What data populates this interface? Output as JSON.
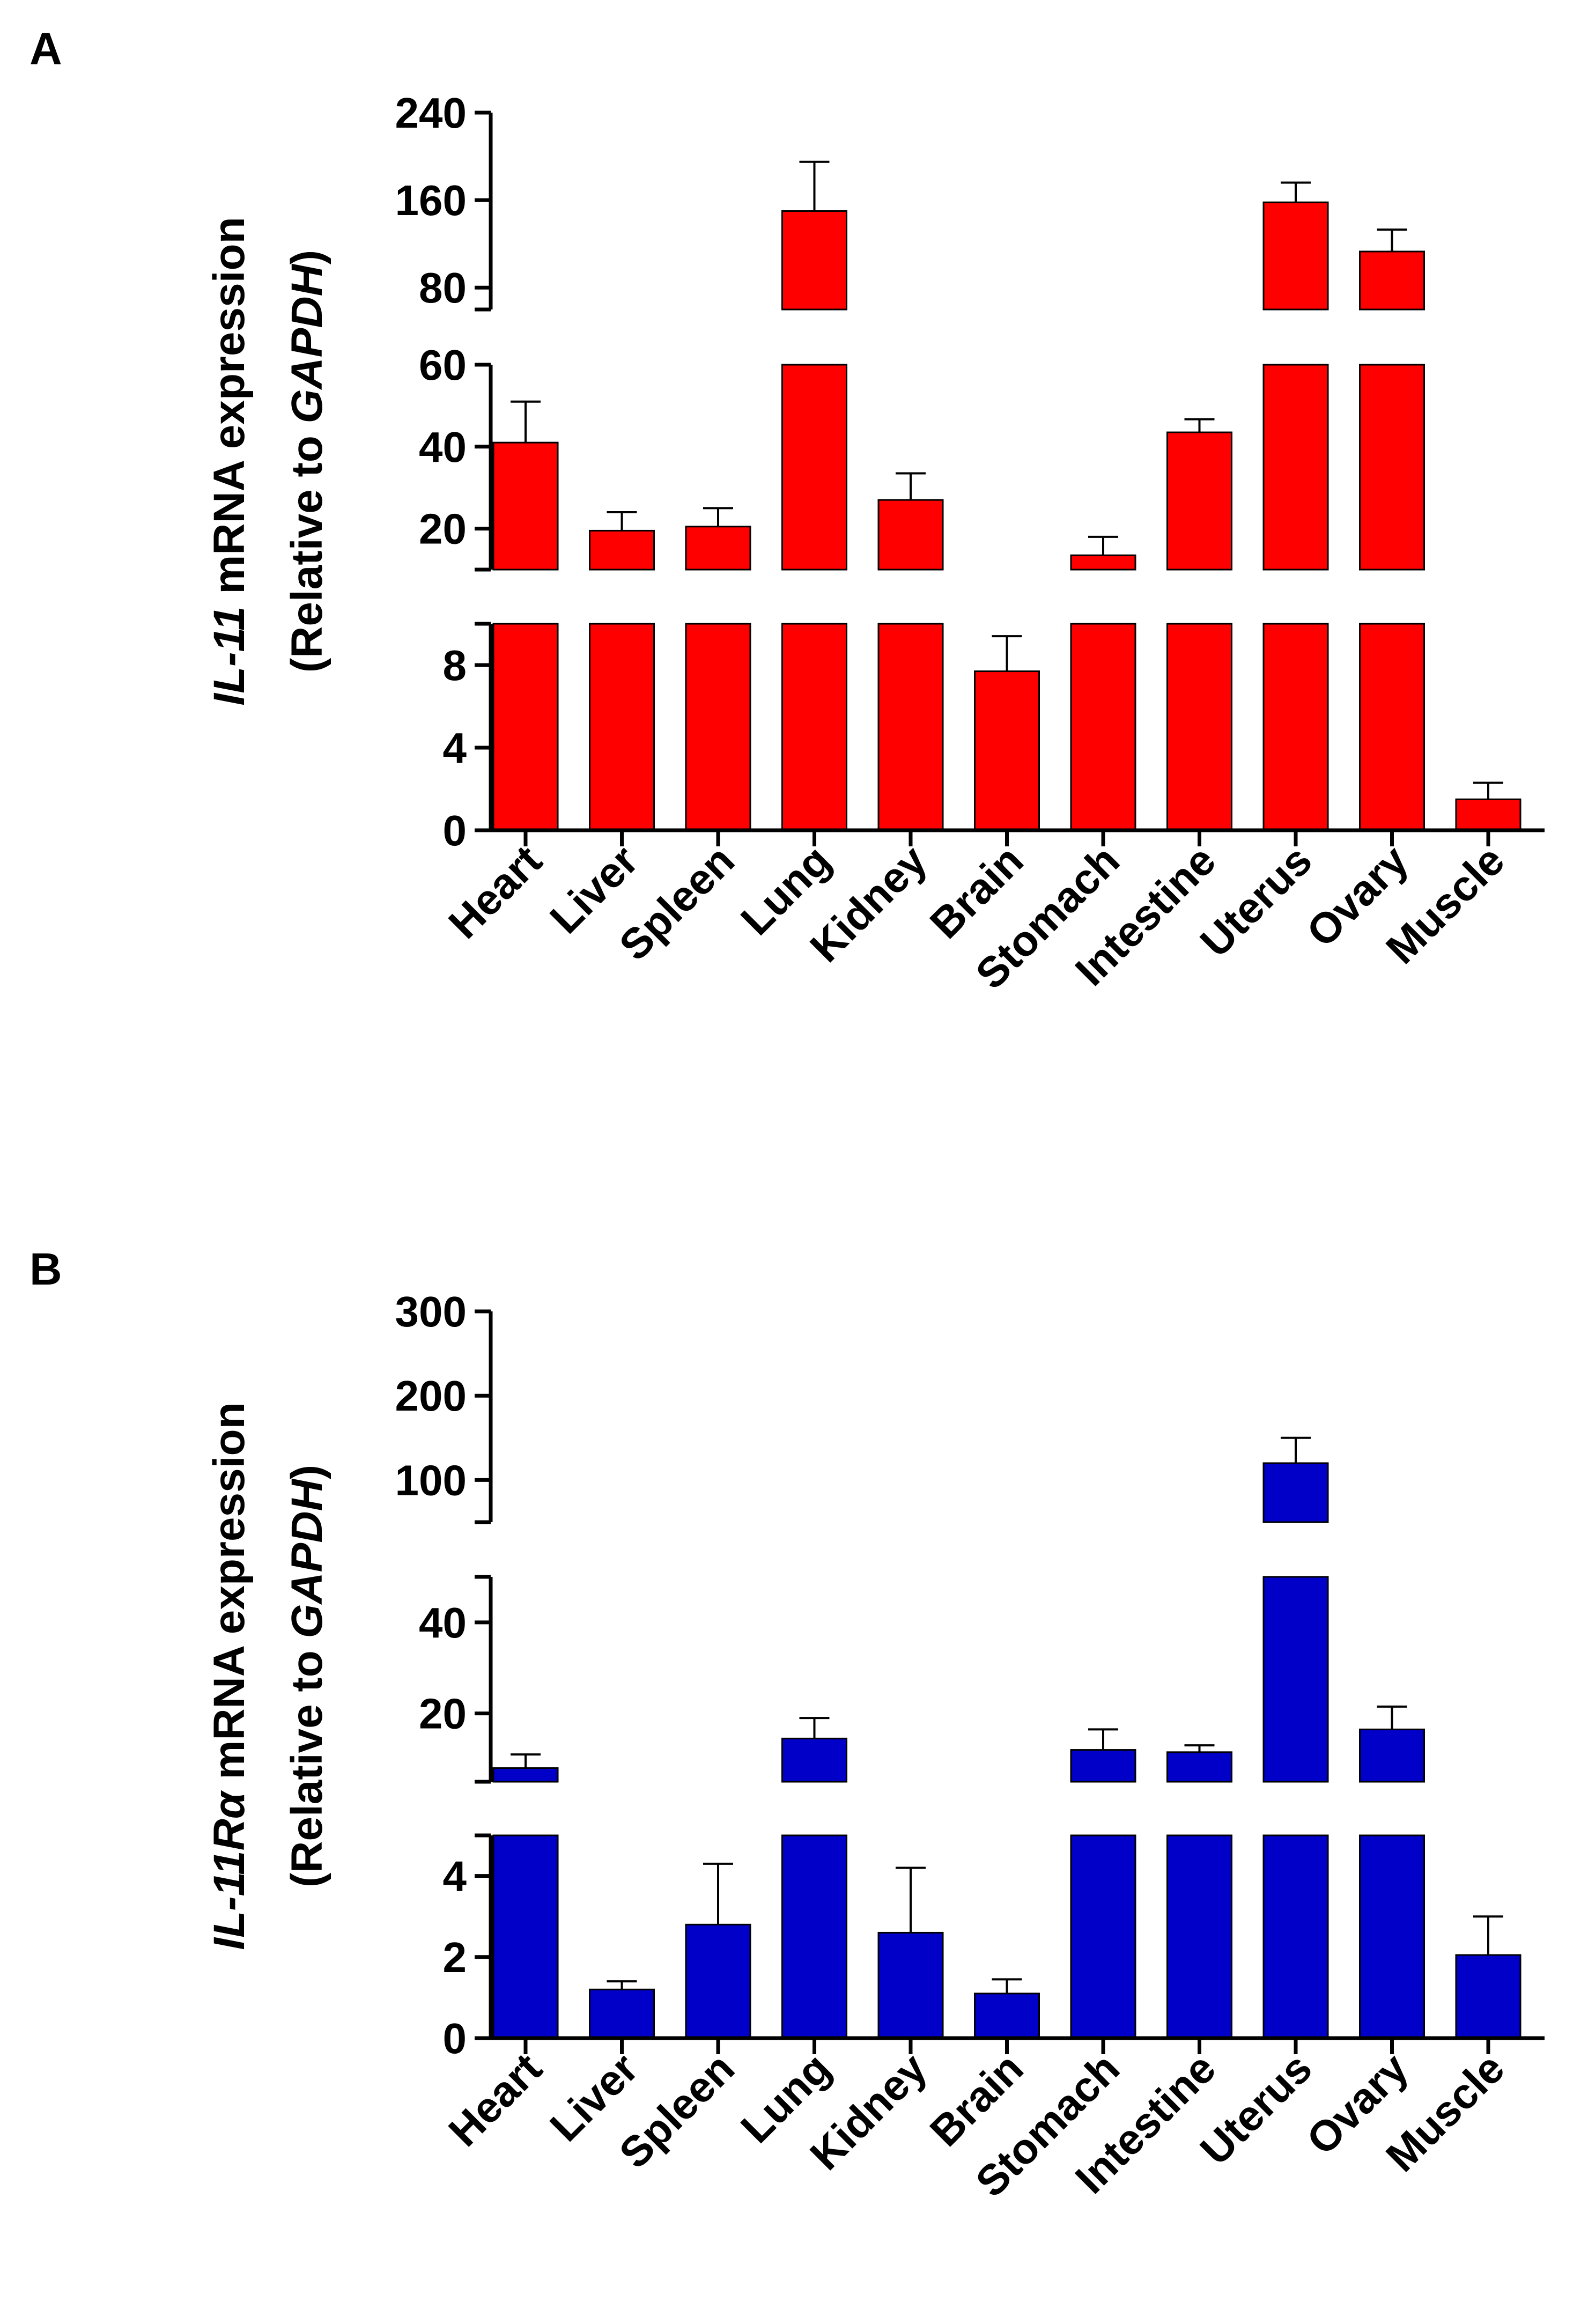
{
  "chart_data": [
    {
      "panel": "A",
      "type": "bar",
      "ylabel": {
        "line1": [
          {
            "text": "IL-11",
            "italic": true
          },
          {
            "text": " mRNA expression",
            "italic": false
          }
        ],
        "line2": [
          {
            "text": "(Relative to ",
            "italic": false
          },
          {
            "text": "GAPDH",
            "italic": true
          },
          {
            "text": ")",
            "italic": false
          }
        ]
      },
      "color": "#ff0000",
      "categories": [
        "Heart",
        "Liver",
        "Spleen",
        "Lung",
        "Kidney",
        "Brain",
        "Stomach",
        "Intestine",
        "Uterus",
        "Ovary",
        "Muscle"
      ],
      "values": [
        41,
        19.5,
        20.5,
        150,
        27,
        7.7,
        13.5,
        43.5,
        158,
        113,
        1.5
      ],
      "errors": [
        10,
        4.5,
        4.5,
        45,
        6.5,
        1.7,
        4.5,
        3.2,
        18,
        20,
        0.8
      ],
      "y_segments": [
        {
          "range": [
            0,
            10
          ],
          "ticks": [
            0,
            4,
            8
          ]
        },
        {
          "range": [
            10,
            60
          ],
          "ticks": [
            20,
            40,
            60
          ]
        },
        {
          "range": [
            60,
            240
          ],
          "ticks": [
            80,
            160,
            240
          ]
        }
      ]
    },
    {
      "panel": "B",
      "type": "bar",
      "ylabel": {
        "line1": [
          {
            "text": "IL-11Rα",
            "italic": true
          },
          {
            "text": "  mRNA expression",
            "italic": false
          }
        ],
        "line2": [
          {
            "text": "(Relative to ",
            "italic": false
          },
          {
            "text": "GAPDH",
            "italic": true
          },
          {
            "text": ")",
            "italic": false
          }
        ]
      },
      "color": "#0000c8",
      "categories": [
        "Heart",
        "Liver",
        "Spleen",
        "Lung",
        "Kidney",
        "Brain",
        "Stomach",
        "Intestine",
        "Uterus",
        "Ovary",
        "Muscle"
      ],
      "values": [
        8,
        1.2,
        2.8,
        14.5,
        2.6,
        1.1,
        12,
        11.5,
        120,
        16.5,
        2.05
      ],
      "errors": [
        3,
        0.2,
        1.5,
        4.5,
        1.6,
        0.35,
        4.5,
        1.5,
        30,
        5,
        0.95
      ],
      "y_segments": [
        {
          "range": [
            0,
            5
          ],
          "ticks": [
            0,
            2,
            4
          ]
        },
        {
          "range": [
            5,
            50
          ],
          "ticks": [
            20,
            40
          ]
        },
        {
          "range": [
            50,
            300
          ],
          "ticks": [
            100,
            200,
            300
          ]
        }
      ]
    }
  ]
}
